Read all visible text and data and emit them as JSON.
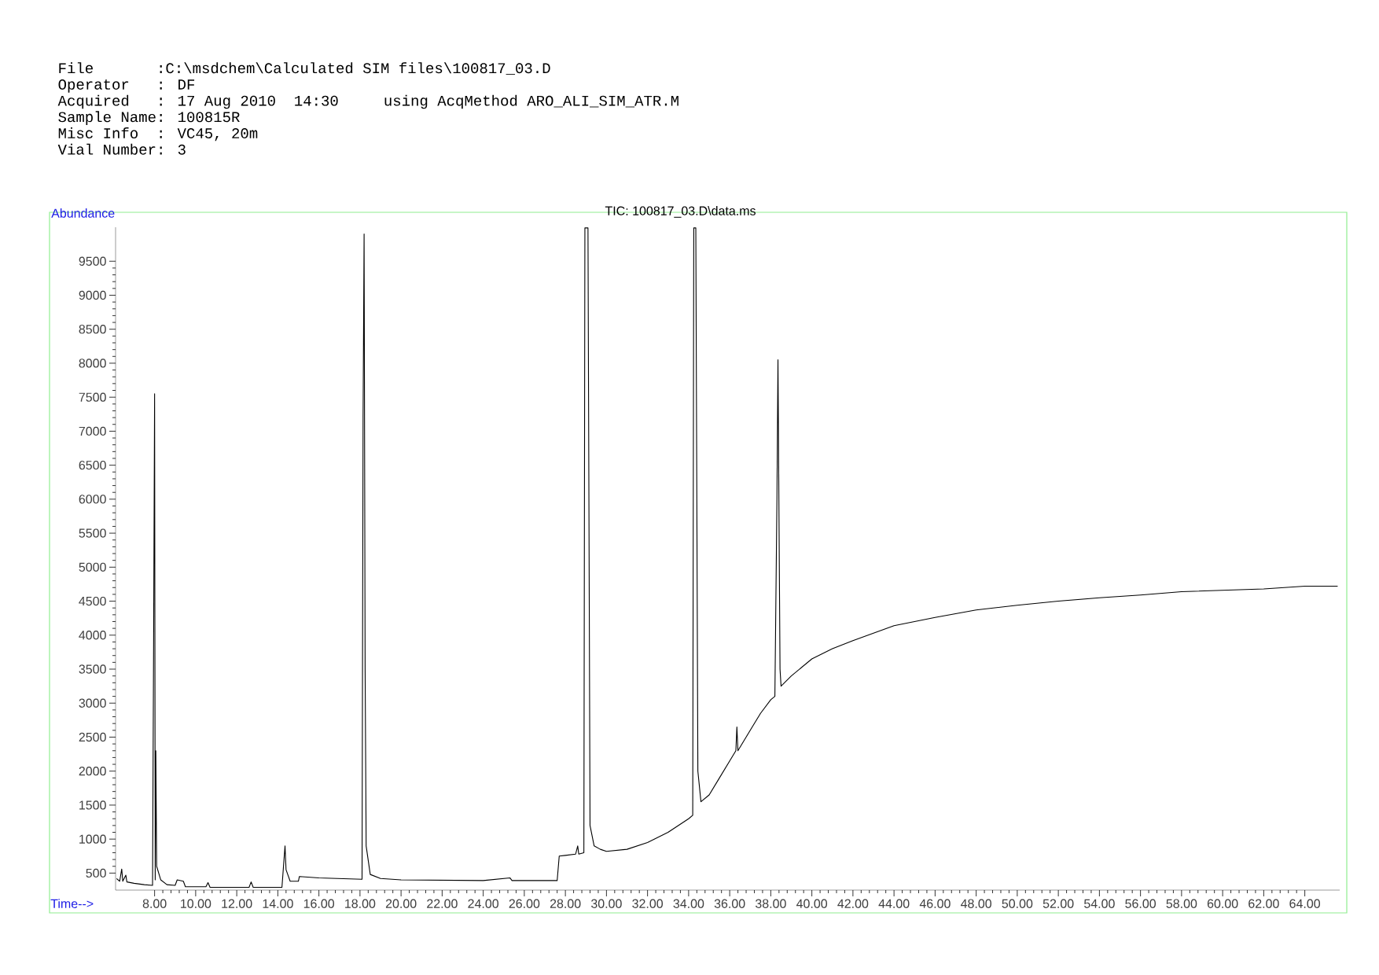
{
  "chart_data": {
    "type": "line",
    "title": "TIC: 100817_03.D\\data.ms",
    "xlabel": "Time-->",
    "ylabel": "Abundance",
    "annotations": [
      "File       :C:\\msdchem\\Calculated SIM files\\100817_03.D",
      "Operator   : DF",
      "Acquired   : 17 Aug 2010  14:30     using AcqMethod ARO_ALI_SIM_ATR.M",
      "Sample Name: 100815R",
      "Misc Info  : VC45, 20m",
      "Vial Number: 3"
    ],
    "x": [
      6.15,
      6.3,
      6.4,
      6.45,
      6.6,
      6.65,
      7.0,
      7.5,
      7.9,
      7.95,
      8.0,
      8.03,
      8.06,
      8.1,
      8.3,
      8.6,
      9.0,
      9.1,
      9.4,
      9.5,
      10.5,
      10.6,
      10.7,
      12.6,
      12.7,
      12.8,
      14.2,
      14.3,
      14.35,
      14.4,
      14.6,
      15.0,
      15.05,
      16,
      18.1,
      18.15,
      18.2,
      18.25,
      18.3,
      18.5,
      19,
      20,
      24,
      25.3,
      25.4,
      27.6,
      27.7,
      28,
      28.5,
      28.6,
      28.65,
      28.9,
      28.95,
      29.1,
      29.2,
      29.4,
      29.7,
      30,
      31,
      32,
      33,
      34,
      34.2,
      34.25,
      34.35,
      34.45,
      34.6,
      35,
      35.5,
      36,
      36.3,
      36.35,
      36.4,
      37,
      37.5,
      38,
      38.2,
      38.3,
      38.35,
      38.45,
      38.5,
      39,
      40,
      41,
      42,
      44,
      46,
      48,
      50,
      52,
      54,
      56,
      58,
      60,
      62,
      64,
      65.6
    ],
    "series": [
      {
        "color": "#000000",
        "values": [
          420,
          380,
          560,
          380,
          470,
          370,
          350,
          330,
          320,
          3750,
          7550,
          400,
          2300,
          600,
          400,
          330,
          320,
          400,
          380,
          300,
          300,
          360,
          290,
          290,
          370,
          290,
          290,
          700,
          900,
          550,
          380,
          380,
          450,
          430,
          410,
          7200,
          9900,
          3500,
          900,
          480,
          420,
          400,
          390,
          430,
          390,
          390,
          750,
          760,
          780,
          900,
          780,
          800,
          9990,
          9990,
          1200,
          900,
          850,
          820,
          850,
          950,
          1100,
          1300,
          1350,
          9990,
          9990,
          2000,
          1550,
          1650,
          1900,
          2150,
          2300,
          2650,
          2300,
          2600,
          2850,
          3050,
          3100,
          6000,
          8050,
          3500,
          3250,
          3400,
          3650,
          3800,
          3920,
          4140,
          4260,
          4370,
          4440,
          4500,
          4550,
          4590,
          4640,
          4660,
          4680,
          4720,
          4720
        ]
      }
    ],
    "xlim": [
      6.1,
      65.7
    ],
    "ylim": [
      250,
      10000
    ],
    "xticks": [
      {
        "value": 8,
        "label": "8.00"
      },
      {
        "value": 10,
        "label": "10.00"
      },
      {
        "value": 12,
        "label": "12.00"
      },
      {
        "value": 14,
        "label": "14.00"
      },
      {
        "value": 16,
        "label": "16.00"
      },
      {
        "value": 18,
        "label": "18.00"
      },
      {
        "value": 20,
        "label": "20.00"
      },
      {
        "value": 22,
        "label": "22.00"
      },
      {
        "value": 24,
        "label": "24.00"
      },
      {
        "value": 26,
        "label": "26.00"
      },
      {
        "value": 28,
        "label": "28.00"
      },
      {
        "value": 30,
        "label": "30.00"
      },
      {
        "value": 32,
        "label": "32.00"
      },
      {
        "value": 34,
        "label": "34.00"
      },
      {
        "value": 36,
        "label": "36.00"
      },
      {
        "value": 38,
        "label": "38.00"
      },
      {
        "value": 40,
        "label": "40.00"
      },
      {
        "value": 42,
        "label": "42.00"
      },
      {
        "value": 44,
        "label": "44.00"
      },
      {
        "value": 46,
        "label": "46.00"
      },
      {
        "value": 48,
        "label": "48.00"
      },
      {
        "value": 50,
        "label": "50.00"
      },
      {
        "value": 52,
        "label": "52.00"
      },
      {
        "value": 54,
        "label": "54.00"
      },
      {
        "value": 56,
        "label": "56.00"
      },
      {
        "value": 58,
        "label": "58.00"
      },
      {
        "value": 60,
        "label": "60.00"
      },
      {
        "value": 62,
        "label": "62.00"
      },
      {
        "value": 64,
        "label": "64.00"
      }
    ],
    "yticks": [
      500,
      1000,
      1500,
      2000,
      2500,
      3000,
      3500,
      4000,
      4500,
      5000,
      5500,
      6000,
      6500,
      7000,
      7500,
      8000,
      8500,
      9000,
      9500
    ],
    "grid": false,
    "marker": "none",
    "line_style": "solid"
  }
}
